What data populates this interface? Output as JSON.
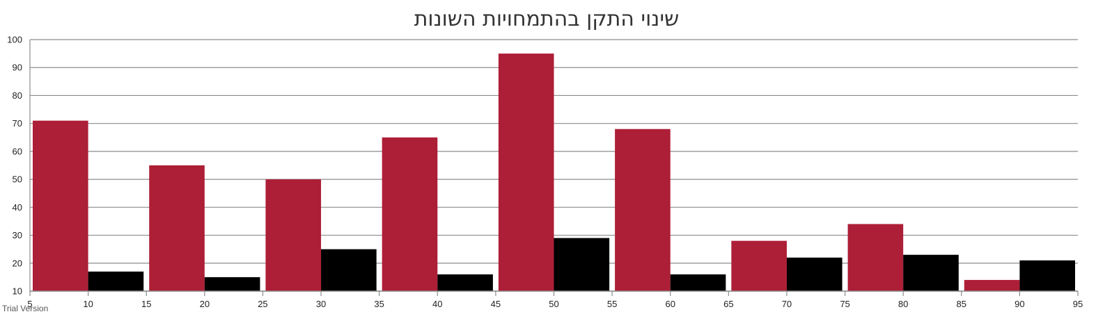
{
  "chart_data": {
    "type": "bar",
    "title": "שינוי התקן בהתמחויות השונות",
    "xlabel": "",
    "ylabel": "",
    "xlim": [
      5,
      95
    ],
    "ylim": [
      10,
      100
    ],
    "x_ticks": [
      5,
      10,
      15,
      20,
      25,
      30,
      35,
      40,
      45,
      50,
      55,
      60,
      65,
      70,
      75,
      80,
      85,
      90,
      95
    ],
    "y_ticks": [
      10,
      20,
      30,
      40,
      50,
      60,
      70,
      80,
      90,
      100
    ],
    "grid": true,
    "legend": "none",
    "categories": [
      10,
      20,
      30,
      40,
      50,
      60,
      70,
      80,
      90
    ],
    "series": [
      {
        "color": "#ad1e37",
        "values": [
          71,
          55,
          50,
          65,
          95,
          68,
          28,
          34,
          14
        ]
      },
      {
        "color": "#000000",
        "values": [
          17,
          15,
          25,
          16,
          29,
          16,
          22,
          23,
          21
        ]
      }
    ]
  },
  "watermark": "Trial Version"
}
